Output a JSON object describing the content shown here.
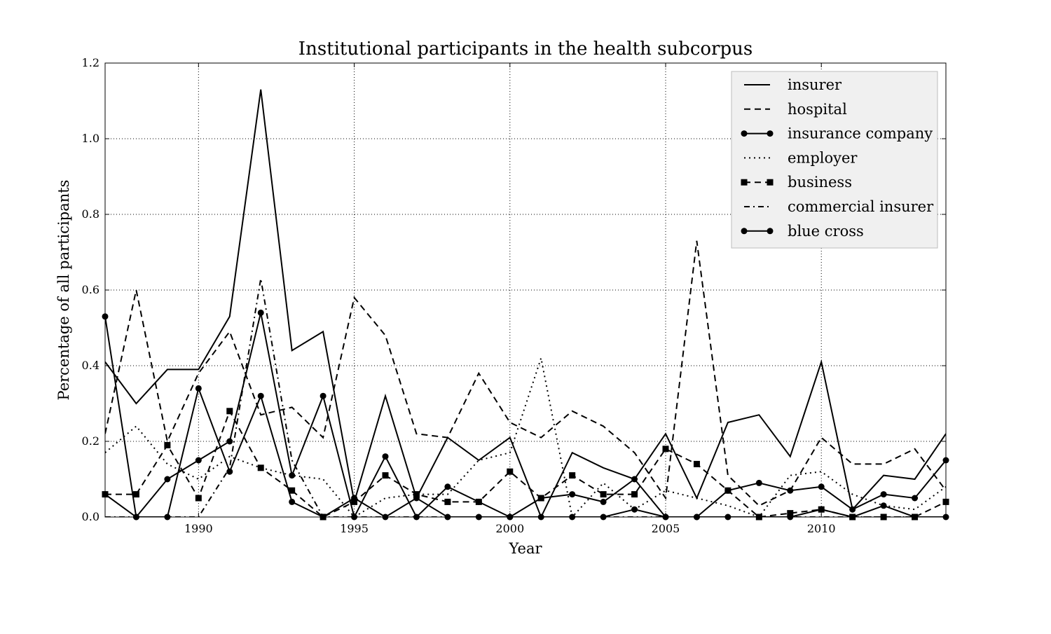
{
  "chart_data": {
    "type": "line",
    "title": "Institutional participants in the health subcorpus",
    "xlabel": "Year",
    "ylabel": "Percentage of all participants",
    "xlim": [
      1987,
      2014
    ],
    "ylim": [
      0,
      1.2
    ],
    "xticks": [
      1990,
      1995,
      2000,
      2005,
      2010
    ],
    "xtick_labels": [
      "1990",
      "1995",
      "2000",
      "2005",
      "2010"
    ],
    "yticks": [
      0,
      0.2,
      0.4,
      0.6,
      0.8,
      1.0,
      1.2
    ],
    "ytick_labels": [
      "0.0",
      "0.2",
      "0.4",
      "0.6",
      "0.8",
      "1.0",
      "1.2"
    ],
    "grid": true,
    "legend_position": "top-right",
    "x": [
      1987,
      1988,
      1989,
      1990,
      1991,
      1992,
      1993,
      1994,
      1995,
      1996,
      1997,
      1998,
      1999,
      2000,
      2001,
      2002,
      2003,
      2004,
      2005,
      2006,
      2007,
      2008,
      2009,
      2010,
      2011,
      2012,
      2013,
      2014
    ],
    "series": [
      {
        "name": "insurer",
        "style": "solid",
        "marker": "none",
        "values": [
          0.41,
          0.3,
          0.39,
          0.39,
          0.53,
          1.13,
          0.44,
          0.49,
          0.04,
          0.32,
          0.05,
          0.21,
          0.15,
          0.21,
          0.0,
          0.17,
          0.13,
          0.1,
          0.22,
          0.05,
          0.25,
          0.27,
          0.16,
          0.41,
          0.02,
          0.11,
          0.1,
          0.22
        ]
      },
      {
        "name": "hospital",
        "style": "dashed",
        "marker": "none",
        "values": [
          0.22,
          0.6,
          0.2,
          0.38,
          0.49,
          0.27,
          0.29,
          0.21,
          0.58,
          0.48,
          0.22,
          0.21,
          0.38,
          0.25,
          0.21,
          0.28,
          0.24,
          0.17,
          0.05,
          0.73,
          0.11,
          0.03,
          0.07,
          0.21,
          0.14,
          0.14,
          0.18,
          0.07
        ]
      },
      {
        "name": "insurance company",
        "style": "solid",
        "marker": "circle",
        "values": [
          0.53,
          0.0,
          0.1,
          0.15,
          0.2,
          0.54,
          0.11,
          0.32,
          0.0,
          0.16,
          0.0,
          0.08,
          0.04,
          0.0,
          0.05,
          0.06,
          0.04,
          0.1,
          0.0,
          0.0,
          0.07,
          0.09,
          0.07,
          0.08,
          0.02,
          0.06,
          0.05,
          0.15
        ]
      },
      {
        "name": "employer",
        "style": "dotted",
        "marker": "none",
        "values": [
          0.17,
          0.24,
          0.14,
          0.1,
          0.16,
          0.13,
          0.11,
          0.1,
          0.0,
          0.05,
          0.06,
          0.06,
          0.15,
          0.17,
          0.42,
          0.0,
          0.09,
          0.02,
          0.07,
          0.05,
          0.03,
          0.0,
          0.11,
          0.12,
          0.06,
          0.03,
          0.02,
          0.08
        ]
      },
      {
        "name": "business",
        "style": "dashed",
        "marker": "square",
        "values": [
          0.06,
          0.06,
          0.19,
          0.05,
          0.28,
          0.13,
          0.07,
          0.0,
          0.04,
          0.11,
          0.06,
          0.04,
          0.04,
          0.12,
          0.05,
          0.11,
          0.06,
          0.06,
          0.18,
          0.14,
          0.07,
          0.0,
          0.01,
          0.02,
          0.0,
          0.0,
          0.0,
          0.04
        ]
      },
      {
        "name": "commercial insurer",
        "style": "dashdot",
        "marker": "none",
        "values": [
          0.0,
          0.0,
          0.0,
          0.0,
          0.13,
          0.63,
          0.15,
          0.0,
          0.0,
          0.0,
          0.0,
          0.0,
          0.0,
          0.0,
          0.0,
          0.0,
          0.0,
          0.0,
          0.0,
          0.0,
          0.0,
          0.0,
          0.0,
          0.0,
          0.0,
          0.0,
          0.0,
          0.0
        ]
      },
      {
        "name": "blue cross",
        "style": "solid",
        "marker": "circle",
        "values": [
          0.06,
          0.0,
          0.0,
          0.34,
          0.12,
          0.32,
          0.04,
          0.0,
          0.05,
          0.0,
          0.05,
          0.0,
          0.0,
          0.0,
          0.0,
          0.0,
          0.0,
          0.02,
          0.0,
          0.0,
          0.0,
          0.0,
          0.0,
          0.02,
          0.0,
          0.03,
          0.0,
          0.0
        ]
      }
    ]
  }
}
